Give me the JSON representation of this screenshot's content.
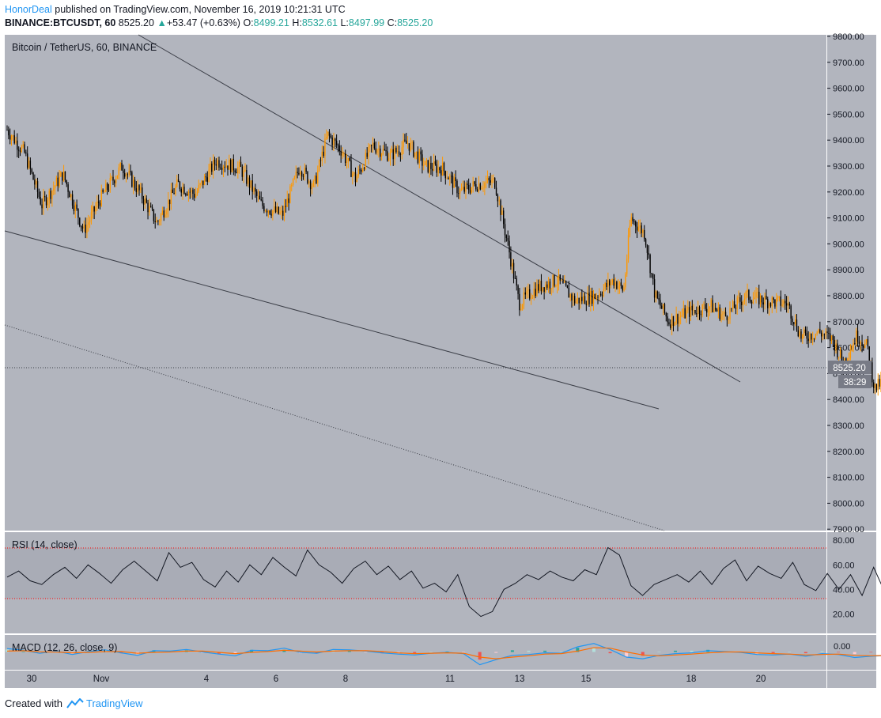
{
  "header": {
    "author": "HonorDeal",
    "published_text": "published on TradingView.com, November 16, 2019 10:21:31 UTC",
    "symbol": "BINANCE:BTCUSDT, 60",
    "last_price": "8525.20",
    "change": "+53.47 (+0.63%)",
    "o_label": "O:",
    "o_value": "8499.21",
    "h_label": "H:",
    "h_value": "8532.61",
    "l_label": "L:",
    "l_value": "8497.99",
    "c_label": "C:",
    "c_value": "8525.20"
  },
  "footer": {
    "created_with": "Created with",
    "brand": "TradingView"
  },
  "colors": {
    "pane_bg": "#b2b5be",
    "candle_up": "#ff9800",
    "candle_down": "#000000",
    "rsi_band": "#a9acb6",
    "rsi_level": "#ff0000",
    "macd_line": "#2196f3",
    "signal_line": "#ff6d00",
    "price_tag": "#787b86"
  },
  "chart_data": [
    {
      "type": "candlestick",
      "title": "Bitcoin / TetherUS, 60, BINANCE",
      "price_axis_labels": [
        "9800.00",
        "9700.00",
        "9600.00",
        "9500.00",
        "9400.00",
        "9300.00",
        "9200.00",
        "9100.00",
        "9000.00",
        "8900.00",
        "8800.00",
        "8700.00",
        "8600.00",
        "8500.00",
        "8400.00",
        "8300.00",
        "8200.00",
        "8100.00",
        "8000.00",
        "7900.00"
      ],
      "ylim": [
        7900,
        9800
      ],
      "last_price_label": "8525.20",
      "countdown_label": "38:29",
      "xlabels": [
        "30",
        "Nov",
        "4",
        "6",
        "8",
        "11",
        "13",
        "15",
        "18",
        "20"
      ],
      "close_path": [
        {
          "d": 0.0,
          "p": 9440
        },
        {
          "d": 0.5,
          "p": 9350
        },
        {
          "d": 1.0,
          "p": 9150
        },
        {
          "d": 1.6,
          "p": 9270
        },
        {
          "d": 2.2,
          "p": 9050
        },
        {
          "d": 2.7,
          "p": 9180
        },
        {
          "d": 3.3,
          "p": 9300
        },
        {
          "d": 3.8,
          "p": 9200
        },
        {
          "d": 4.3,
          "p": 9080
        },
        {
          "d": 4.9,
          "p": 9230
        },
        {
          "d": 5.4,
          "p": 9190
        },
        {
          "d": 6.0,
          "p": 9320
        },
        {
          "d": 6.7,
          "p": 9290
        },
        {
          "d": 7.3,
          "p": 9150
        },
        {
          "d": 7.9,
          "p": 9110
        },
        {
          "d": 8.4,
          "p": 9300
        },
        {
          "d": 8.8,
          "p": 9220
        },
        {
          "d": 9.2,
          "p": 9420
        },
        {
          "d": 9.6,
          "p": 9360
        },
        {
          "d": 10.0,
          "p": 9250
        },
        {
          "d": 10.5,
          "p": 9380
        },
        {
          "d": 11.0,
          "p": 9340
        },
        {
          "d": 11.5,
          "p": 9390
        },
        {
          "d": 12.0,
          "p": 9300
        },
        {
          "d": 12.5,
          "p": 9290
        },
        {
          "d": 13.0,
          "p": 9200
        },
        {
          "d": 13.5,
          "p": 9230
        },
        {
          "d": 14.0,
          "p": 9240
        },
        {
          "d": 14.4,
          "p": 8980
        },
        {
          "d": 14.7,
          "p": 8770
        },
        {
          "d": 15.2,
          "p": 8830
        },
        {
          "d": 15.8,
          "p": 8860
        },
        {
          "d": 16.3,
          "p": 8780
        },
        {
          "d": 16.9,
          "p": 8800
        },
        {
          "d": 17.4,
          "p": 8860
        },
        {
          "d": 17.7,
          "p": 8820
        },
        {
          "d": 17.9,
          "p": 9100
        },
        {
          "d": 18.3,
          "p": 9040
        },
        {
          "d": 18.6,
          "p": 8800
        },
        {
          "d": 19.0,
          "p": 8700
        },
        {
          "d": 19.6,
          "p": 8740
        },
        {
          "d": 20.2,
          "p": 8760
        },
        {
          "d": 20.6,
          "p": 8720
        },
        {
          "d": 21.2,
          "p": 8800
        },
        {
          "d": 21.8,
          "p": 8780
        },
        {
          "d": 22.4,
          "p": 8770
        },
        {
          "d": 22.8,
          "p": 8640
        },
        {
          "d": 23.3,
          "p": 8660
        },
        {
          "d": 23.7,
          "p": 8630
        },
        {
          "d": 24.0,
          "p": 8540
        },
        {
          "d": 24.4,
          "p": 8650
        },
        {
          "d": 24.7,
          "p": 8600
        },
        {
          "d": 24.9,
          "p": 8440
        },
        {
          "d": 25.3,
          "p": 8490
        },
        {
          "d": 25.7,
          "p": 8450
        },
        {
          "d": 26.0,
          "p": 8480
        },
        {
          "d": 26.2,
          "p": 8525
        }
      ]
    },
    {
      "type": "line",
      "title": "RSI (14, close)",
      "axis_labels": [
        "80.00",
        "60.00",
        "40.00",
        "20.00"
      ],
      "ylim": [
        10,
        84
      ],
      "levels": [
        70,
        30
      ],
      "series": [
        {
          "values": [
            50,
            55,
            47,
            44,
            52,
            58,
            49,
            60,
            53,
            45,
            56,
            63,
            55,
            47,
            70,
            58,
            62,
            48,
            42,
            55,
            46,
            60,
            52,
            66,
            58,
            51,
            72,
            60,
            54,
            45,
            57,
            63,
            52,
            59,
            48,
            55,
            41,
            45,
            38,
            52,
            26,
            18,
            22,
            40,
            45,
            52,
            48,
            55,
            50,
            47,
            56,
            52,
            74,
            68,
            43,
            35,
            44,
            48,
            52,
            46,
            55,
            44,
            57,
            64,
            47,
            59,
            53,
            49,
            62,
            44,
            39,
            53,
            40,
            52,
            35,
            58,
            37,
            45,
            43,
            52
          ]
        }
      ]
    },
    {
      "type": "line",
      "title": "MACD (12, 26, close, 9)",
      "axis_labels": [
        "0.00"
      ],
      "ylim": [
        -40,
        40
      ],
      "series": [
        {
          "values": [
            8,
            4,
            -3,
            2,
            -6,
            1,
            5,
            -2,
            -8,
            3,
            2,
            6,
            0,
            -5,
            -9,
            4,
            3,
            9,
            -1,
            -3,
            6,
            5,
            2,
            -2,
            -5,
            -7,
            -3,
            -1,
            -4,
            -30,
            -18,
            -8,
            -6,
            -2,
            -3,
            12,
            20,
            6,
            -12,
            -16,
            -8,
            -4,
            -2,
            3,
            1,
            -1,
            -6,
            -7,
            -5,
            -10,
            -4,
            -6,
            -13,
            -10,
            -8,
            -6,
            -4
          ]
        },
        {
          "values": [
            2,
            3,
            0,
            0,
            -2,
            -1,
            1,
            1,
            -3,
            -1,
            0,
            2,
            2,
            -1,
            -4,
            -1,
            1,
            4,
            2,
            0,
            2,
            3,
            3,
            1,
            -2,
            -4,
            -3,
            -2,
            -3,
            -12,
            -16,
            -12,
            -9,
            -5,
            -4,
            2,
            10,
            9,
            0,
            -7,
            -9,
            -7,
            -5,
            -2,
            0,
            0,
            -2,
            -4,
            -5,
            -7,
            -6,
            -5,
            -8,
            -9,
            -8,
            -7,
            -6
          ]
        }
      ]
    }
  ]
}
